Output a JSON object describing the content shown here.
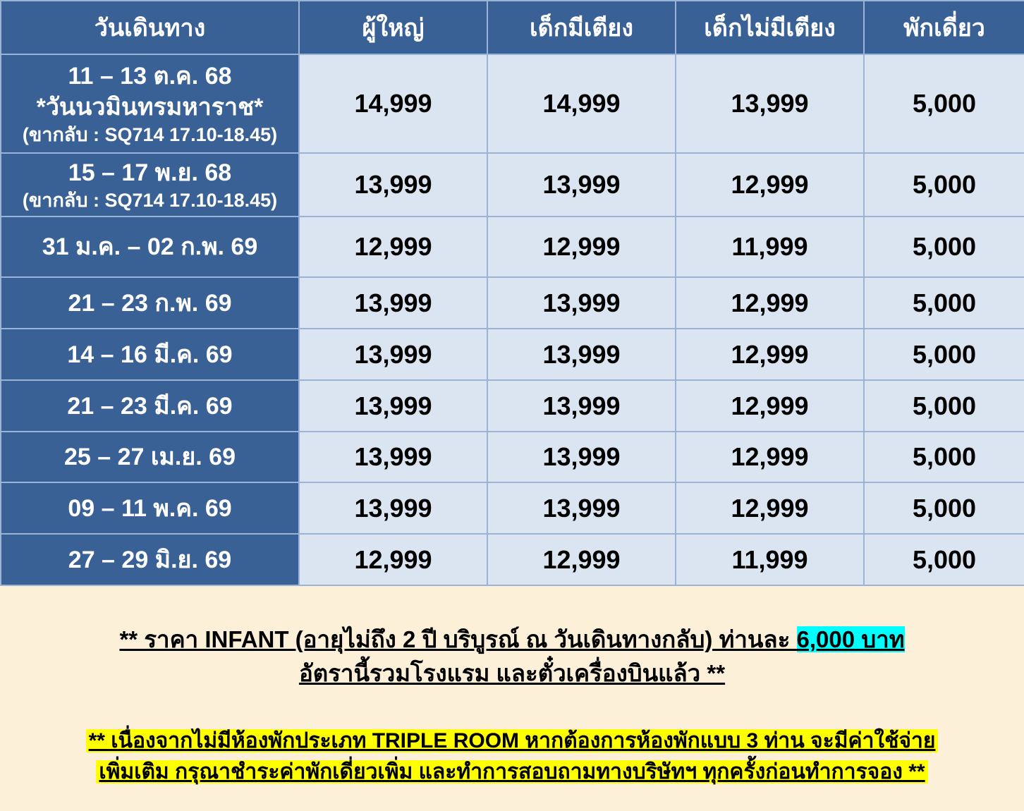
{
  "headers": [
    "วันเดินทาง",
    "ผู้ใหญ่",
    "เด็กมีเตียง",
    "เด็กไม่มีเตียง",
    "พักเดี่ยว"
  ],
  "rows": [
    {
      "date": "11 – 13 ต.ค. 68",
      "note": "*วันนวมินทรมหาราช*",
      "flight": "(ขากลับ : SQ714 17.10-18.45)",
      "prices": [
        "14,999",
        "14,999",
        "13,999",
        "5,000"
      ]
    },
    {
      "date": "15 – 17 พ.ย. 68",
      "note": "",
      "flight": "(ขากลับ : SQ714 17.10-18.45)",
      "prices": [
        "13,999",
        "13,999",
        "12,999",
        "5,000"
      ]
    },
    {
      "date": "31 ม.ค. – 02 ก.พ. 69",
      "note": "",
      "flight": "",
      "prices": [
        "12,999",
        "12,999",
        "11,999",
        "5,000"
      ]
    },
    {
      "date": "21 – 23 ก.พ. 69",
      "note": "",
      "flight": "",
      "prices": [
        "13,999",
        "13,999",
        "12,999",
        "5,000"
      ]
    },
    {
      "date": "14 – 16 มี.ค. 69",
      "note": "",
      "flight": "",
      "prices": [
        "13,999",
        "13,999",
        "12,999",
        "5,000"
      ]
    },
    {
      "date": "21 – 23 มี.ค. 69",
      "note": "",
      "flight": "",
      "prices": [
        "13,999",
        "13,999",
        "12,999",
        "5,000"
      ]
    },
    {
      "date": "25 – 27 เม.ย. 69",
      "note": "",
      "flight": "",
      "prices": [
        "13,999",
        "13,999",
        "12,999",
        "5,000"
      ]
    },
    {
      "date": "09 – 11 พ.ค. 69",
      "note": "",
      "flight": "",
      "prices": [
        "13,999",
        "13,999",
        "12,999",
        "5,000"
      ]
    },
    {
      "date": "27 – 29 มิ.ย. 69",
      "note": "",
      "flight": "",
      "prices": [
        "12,999",
        "12,999",
        "11,999",
        "5,000"
      ]
    }
  ],
  "notes": {
    "infant_text": "** ราคา INFANT (อายุไม่ถึง 2 ปี บริบูรณ์ ณ วันเดินทางกลับ) ท่านละ ",
    "infant_price": "6,000 บาท",
    "infant_line2": "อัตรานี้รวมโรงแรม และตั๋วเครื่องบินแล้ว **",
    "triple_line1": "** เนื่องจากไม่มีห้องพักประเภท TRIPLE ROOM หากต้องการห้องพักแบบ 3 ท่าน จะมีค่าใช้จ่าย",
    "triple_line2": "เพิ่มเติม กรุณาชำระค่าพักเดี่ยวเพิ่ม และทำการสอบถามทางบริษัทฯ ทุกครั้งก่อนทำการจอง **"
  },
  "colors": {
    "header_bg": "#3a6195",
    "cell_bg": "#dbe5f1",
    "page_bg": "#fdf0d9",
    "highlight_cyan": "#00ffff",
    "highlight_yellow": "#ffff00"
  }
}
